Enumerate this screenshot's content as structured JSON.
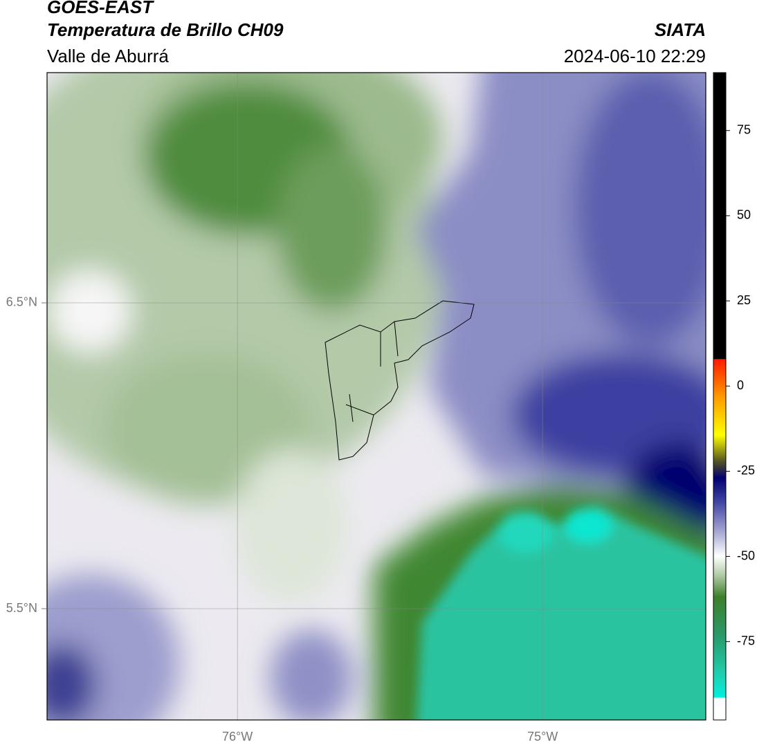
{
  "chart_data": {
    "type": "map",
    "title": "GOES-EAST",
    "subtitle": "Temperatura de Brillo CH09",
    "region": "Valle de Aburrá",
    "source": "SIATA",
    "timestamp": "2024-06-10 22:29",
    "xlim": [
      -76.624,
      -74.465
    ],
    "ylim": [
      5.136,
      7.253
    ],
    "xticks": [
      {
        "value": -76,
        "label": "76°W"
      },
      {
        "value": -75,
        "label": "75°W"
      }
    ],
    "yticks": [
      {
        "value": 5.5,
        "label": "5.5°N"
      },
      {
        "value": 6.5,
        "label": "6.5°N"
      }
    ],
    "grid": true,
    "colorbar": {
      "lim": [
        -98,
        92
      ],
      "ticks": [
        -75,
        -50,
        -25,
        0,
        25,
        50,
        75
      ]
    }
  }
}
